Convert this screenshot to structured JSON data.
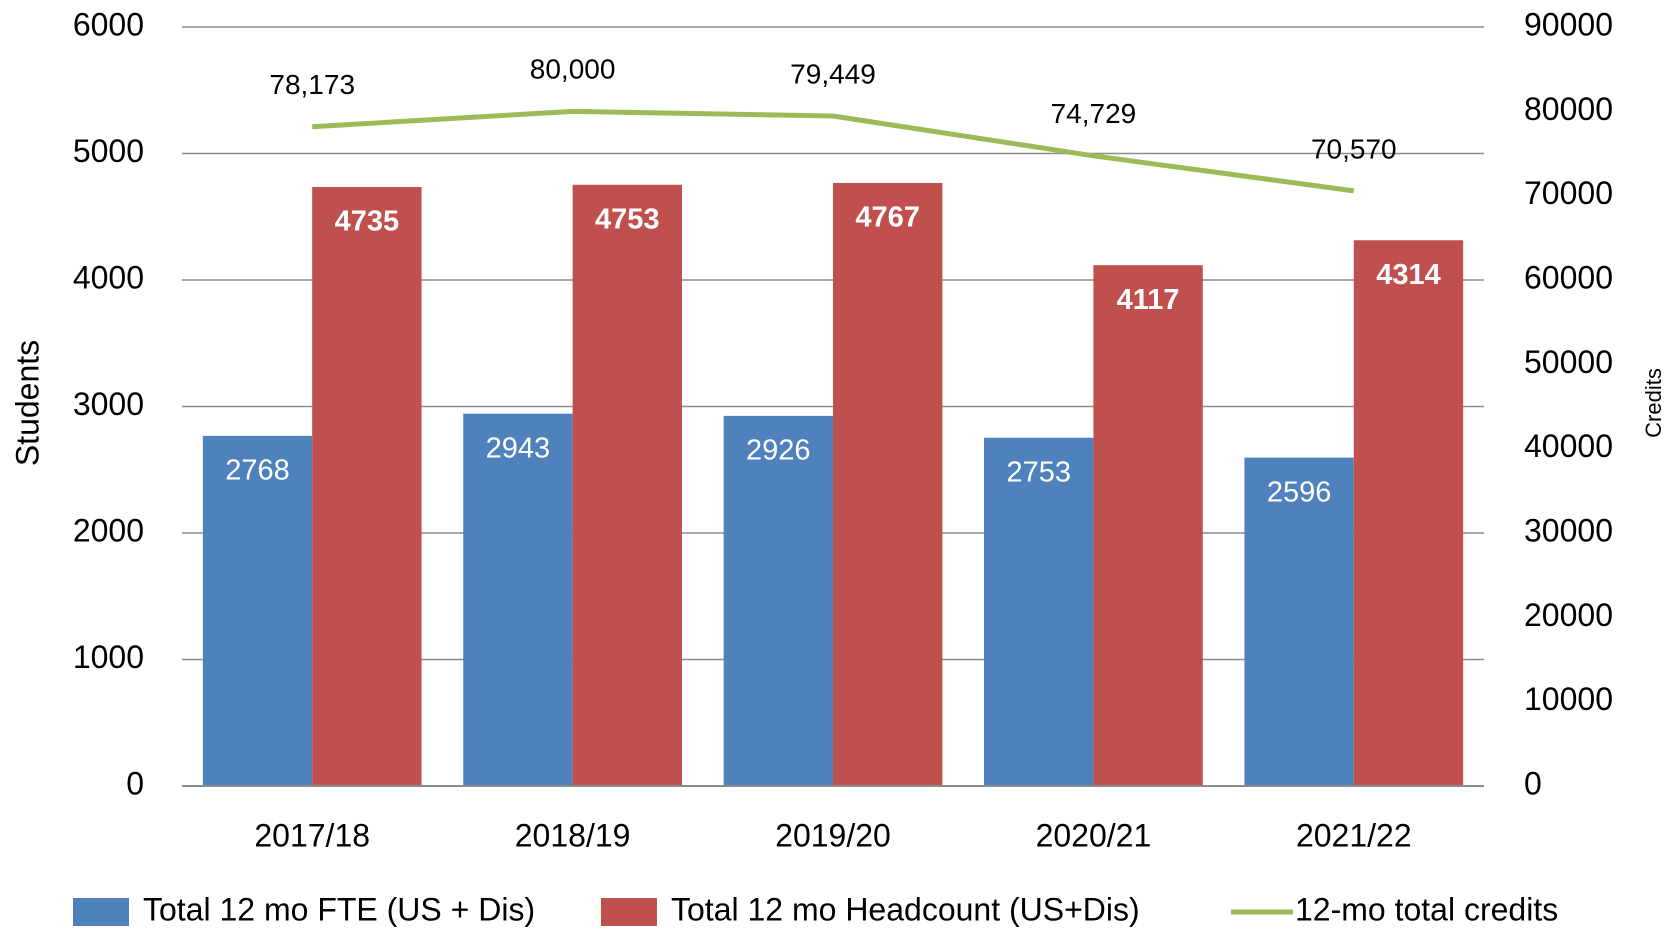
{
  "chart_data": {
    "type": "bar",
    "categories": [
      "2017/18",
      "2018/19",
      "2019/20",
      "2020/21",
      "2021/22"
    ],
    "y_label": "Students",
    "y2_label": "Credits",
    "ylim": [
      0,
      6000
    ],
    "yticks": [
      0,
      1000,
      2000,
      3000,
      4000,
      5000,
      6000
    ],
    "y2lim": [
      0,
      90000
    ],
    "y2ticks": [
      0,
      10000,
      20000,
      30000,
      40000,
      50000,
      60000,
      70000,
      80000,
      90000
    ],
    "grid": true,
    "legend": "bottom",
    "series": [
      {
        "name": "Total 12 mo FTE (US + Dis)",
        "color": "#4f81bd",
        "values": [
          2768,
          2943,
          2926,
          2753,
          2596
        ]
      },
      {
        "name": "Total 12 mo Headcount (US+Dis)",
        "color": "#c0504d",
        "values": [
          4735,
          4753,
          4767,
          4117,
          4314
        ]
      },
      {
        "name": "12-mo total credits",
        "color": "#9bbb59",
        "type": "line",
        "axis": "y2",
        "values": [
          78173,
          80000,
          79449,
          74729,
          70570
        ],
        "value_labels": [
          "78,173",
          "80,000",
          "79,449",
          "74,729",
          "70,570"
        ]
      }
    ]
  }
}
